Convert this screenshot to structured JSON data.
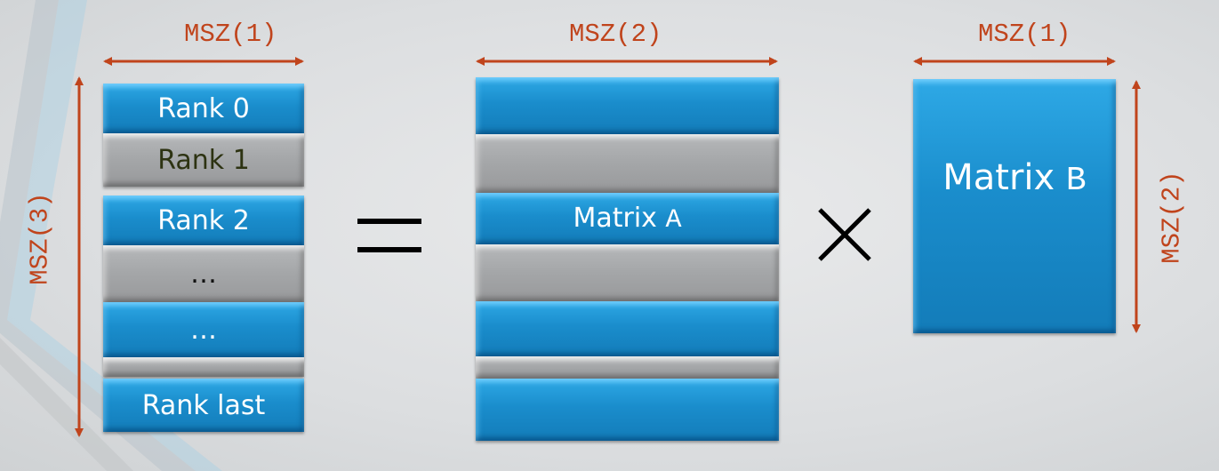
{
  "labels": {
    "left_width": "MSZ(1)",
    "left_height": "MSZ(3)",
    "a_width": "MSZ(2)",
    "b_width": "MSZ(1)",
    "b_height": "MSZ(2)"
  },
  "result_rows": [
    "Rank 0",
    "Rank 1",
    "Rank 2",
    "…",
    "…",
    "",
    "Rank last"
  ],
  "matrix_a": {
    "name": "Matrix",
    "letter": "A"
  },
  "matrix_b": {
    "name": "Matrix",
    "letter": "B"
  },
  "colors": {
    "label": "#c0441c",
    "blue": "#1a8dcc",
    "gray": "#a4a6a8"
  }
}
